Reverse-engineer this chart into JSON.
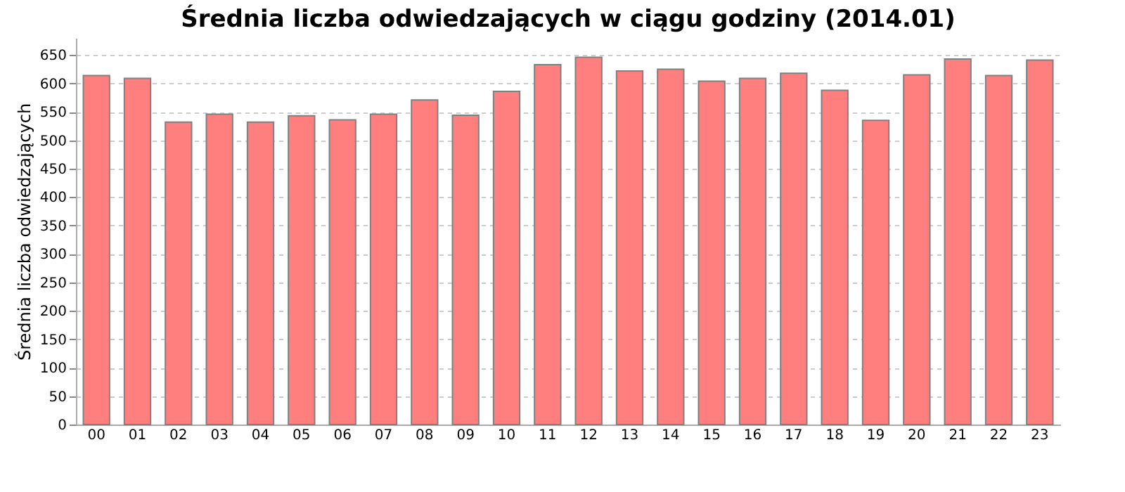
{
  "chart_data": {
    "type": "bar",
    "title": "Średnia liczba odwiedzających w ciągu godziny (2014.01)",
    "ylabel": "Średnia liczba odwiedzających",
    "categories": [
      "00",
      "01",
      "02",
      "03",
      "04",
      "05",
      "06",
      "07",
      "08",
      "09",
      "10",
      "11",
      "12",
      "13",
      "14",
      "15",
      "16",
      "17",
      "18",
      "19",
      "20",
      "21",
      "22",
      "23"
    ],
    "values": [
      614,
      609,
      532,
      546,
      532,
      543,
      536,
      546,
      571,
      544,
      586,
      633,
      646,
      622,
      625,
      604,
      609,
      618,
      588,
      535,
      615,
      643,
      614,
      641
    ],
    "color": "#ff7f7f",
    "ylim": [
      0,
      680
    ],
    "yticks": [
      0,
      50,
      100,
      150,
      200,
      250,
      300,
      350,
      400,
      450,
      500,
      550,
      600,
      650
    ],
    "grid": "y"
  }
}
